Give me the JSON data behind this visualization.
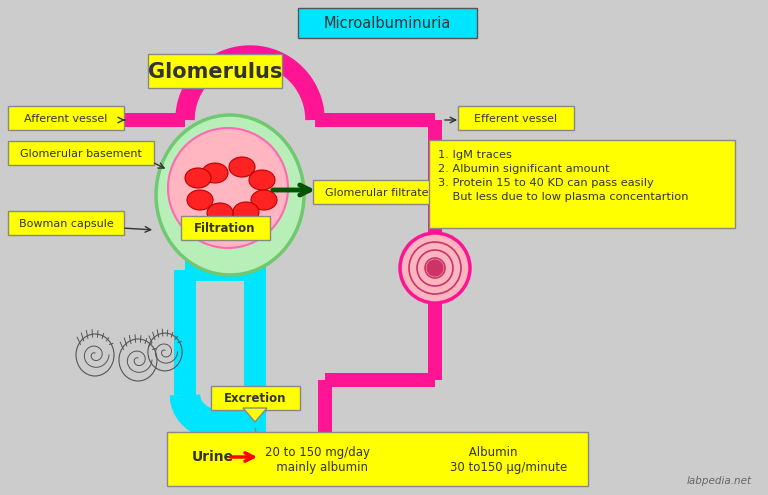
{
  "bg_color": "#cccccc",
  "title_box_color": "#00e5ff",
  "title_text": "Microalbuminuria",
  "glomerulus_label": "Glomerulus",
  "yellow": "#ffff00",
  "magenta": "#ff1493",
  "cyan": "#00e5ff",
  "dark_green": "#006400",
  "labels": {
    "afferent": "Afferent vessel",
    "glomerular_basement": "Glomerular basement",
    "bowman": "Bowman capsule",
    "efferent": "Efferent vessel",
    "filtration": "Filtration",
    "glomerular_filtrate": "Glomerular filtrate",
    "excretion": "Excretion"
  },
  "info_box_text": "1. IgM traces\n2. Albumin significant amount\n3. Protein 15 to 40 KD can pass easily\n    But less due to low plasma concentartion",
  "urine_text1": "Urine",
  "urine_text2": "20 to 150 mg/day\n   mainly albumin",
  "urine_text3": "     Albumin\n30 to150 μg/minute",
  "watermark": "labpedia.net"
}
